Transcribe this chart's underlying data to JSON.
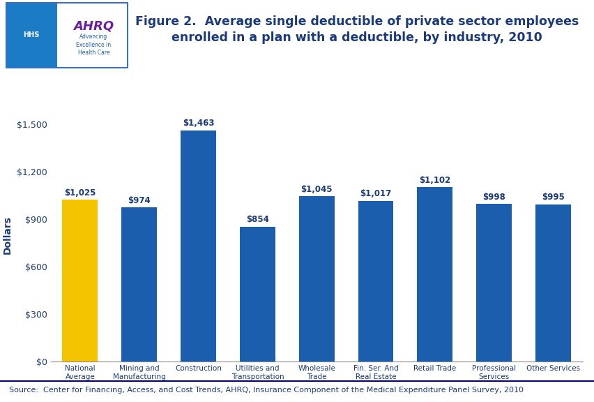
{
  "title": "Figure 2.  Average single deductible of private sector employees\nenrolled in a plan with a deductible, by industry, 2010",
  "categories": [
    "National\nAverage",
    "Mining and\nManufacturing",
    "Construction",
    "Utilities and\nTransportation",
    "Wholesale\nTrade",
    "Fin. Ser. And\nReal Estate",
    "Retail Trade",
    "Professional\nServices",
    "Other Services"
  ],
  "values": [
    1025,
    974,
    1463,
    854,
    1045,
    1017,
    1102,
    998,
    995
  ],
  "bar_colors": [
    "#F5C400",
    "#1B5EAD",
    "#1B5EAD",
    "#1B5EAD",
    "#1B5EAD",
    "#1B5EAD",
    "#1B5EAD",
    "#1B5EAD",
    "#1B5EAD"
  ],
  "bar_labels": [
    "$1,025",
    "$974",
    "$1,463",
    "$854",
    "$1,045",
    "$1,017",
    "$1,102",
    "$998",
    "$995"
  ],
  "ylabel": "Dollars",
  "ylim": [
    0,
    1600
  ],
  "yticks": [
    0,
    300,
    600,
    900,
    1200,
    1500
  ],
  "ytick_labels": [
    "$0",
    "$300",
    "$600",
    "$900",
    "$1,200",
    "$1,500"
  ],
  "source_text": "Source:  Center for Financing, Access, and Cost Trends, AHRQ, Insurance Component of the Medical Expenditure Panel Survey, 2010",
  "title_color": "#1B3A7A",
  "title_fontsize": 12.5,
  "ylabel_color": "#1B3A7A",
  "bar_label_color": "#1B3A7A",
  "axis_label_color": "#1B3A7A",
  "source_color": "#1B3A7A",
  "background_color": "#FFFFFF",
  "separator_color": "#00008B",
  "logo_left_color": "#1B7BC4",
  "logo_right_color": "#FFFFFF",
  "logo_border_color": "#3A6EC0",
  "ahrq_color": "#6B1FA0",
  "advancing_color": "#1B5EAD",
  "source_fontsize": 8.0,
  "bar_label_fontsize": 8.5,
  "xtick_fontsize": 7.5,
  "ytick_fontsize": 9
}
